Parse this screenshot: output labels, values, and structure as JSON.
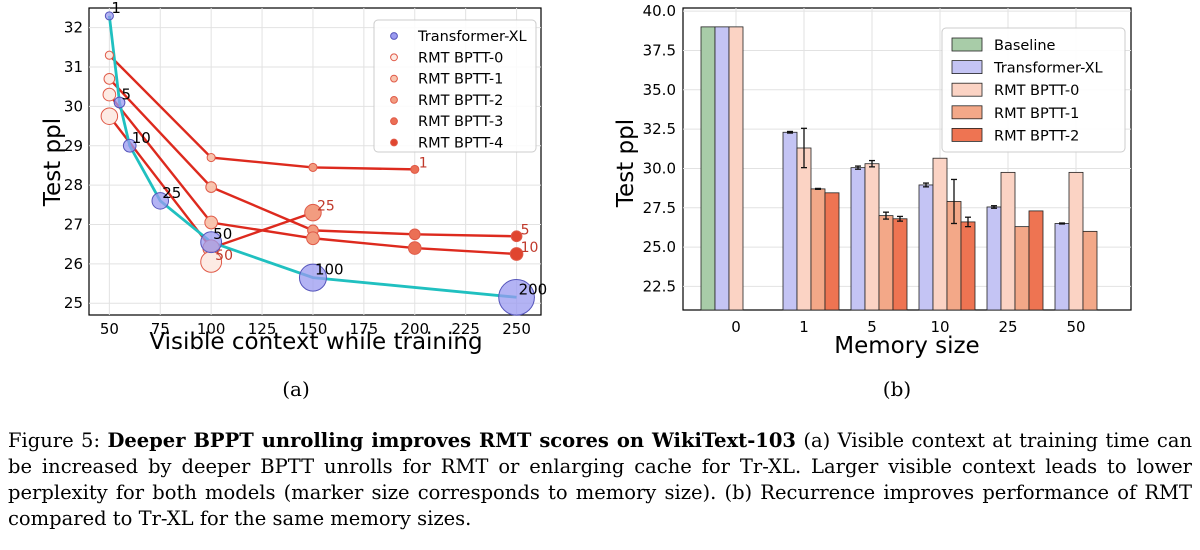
{
  "figure": {
    "label": "Figure 5:",
    "title": "Deeper BPPT unrolling improves RMT scores on WikiText-103",
    "body": "(a) Visible context at training time can be increased by deeper BPTT unrolls for RMT or enlarging cache for Tr-XL. Larger visible context leads to lower perplexity for both models (marker size corresponds to memory size). (b) Recurrence improves performance of RMT compared to Tr-XL for the same memory sizes."
  },
  "chart_data": [
    {
      "type": "line",
      "panel_label": "(a)",
      "xlabel": "Visible context while training",
      "ylabel": "Test ppl",
      "xlim": [
        40,
        262
      ],
      "ylim": [
        24.7,
        32.5
      ],
      "xticks": [
        50,
        75,
        100,
        125,
        150,
        175,
        200,
        225,
        250
      ],
      "yticks": [
        25,
        26,
        27,
        28,
        29,
        30,
        31,
        32
      ],
      "grid": true,
      "legend_position": "top-right",
      "series": [
        {
          "name": "Transformer-XL",
          "color": "#20c0c0",
          "marker_color": "#9a9af0",
          "points": [
            {
              "x": 50,
              "y": 32.3,
              "mem": 1,
              "label": "1"
            },
            {
              "x": 55,
              "y": 30.1,
              "mem": 5,
              "label": "5"
            },
            {
              "x": 60,
              "y": 29.0,
              "mem": 10,
              "label": "10"
            },
            {
              "x": 75,
              "y": 27.6,
              "mem": 25,
              "label": "25"
            },
            {
              "x": 100,
              "y": 26.55,
              "mem": 50,
              "label": "50"
            },
            {
              "x": 150,
              "y": 25.65,
              "mem": 100,
              "label": "100"
            },
            {
              "x": 250,
              "y": 25.15,
              "mem": 200,
              "label": "200"
            }
          ]
        },
        {
          "name": "RMT BPTT-0",
          "line": false,
          "points": []
        },
        {
          "name": "RMT BPTT-1",
          "line": false,
          "points": []
        },
        {
          "name": "RMT BPTT-2",
          "line": false,
          "points": []
        },
        {
          "name": "RMT BPTT-3",
          "line": false,
          "points": []
        },
        {
          "name": "RMT BPTT-4",
          "line": false,
          "points": []
        }
      ],
      "rmt_lines": [
        {
          "label": "1",
          "points": [
            {
              "x": 50,
              "y": 31.3,
              "mem": 1,
              "bptt": 0
            },
            {
              "x": 100,
              "y": 28.7,
              "mem": 1,
              "bptt": 1
            },
            {
              "x": 150,
              "y": 28.45,
              "mem": 1,
              "bptt": 2
            },
            {
              "x": 200,
              "y": 28.4,
              "mem": 1,
              "bptt": 3
            }
          ]
        },
        {
          "label": "5",
          "points": [
            {
              "x": 50,
              "y": 30.7,
              "mem": 5,
              "bptt": 0
            },
            {
              "x": 100,
              "y": 27.95,
              "mem": 5,
              "bptt": 1
            },
            {
              "x": 150,
              "y": 26.85,
              "mem": 5,
              "bptt": 2
            },
            {
              "x": 200,
              "y": 26.75,
              "mem": 5,
              "bptt": 3
            },
            {
              "x": 250,
              "y": 26.7,
              "mem": 5,
              "bptt": 4
            }
          ]
        },
        {
          "label": "10",
          "points": [
            {
              "x": 50,
              "y": 30.3,
              "mem": 10,
              "bptt": 0
            },
            {
              "x": 100,
              "y": 27.05,
              "mem": 10,
              "bptt": 1
            },
            {
              "x": 150,
              "y": 26.65,
              "mem": 10,
              "bptt": 2
            },
            {
              "x": 200,
              "y": 26.4,
              "mem": 10,
              "bptt": 3
            },
            {
              "x": 250,
              "y": 26.25,
              "mem": 10,
              "bptt": 4
            }
          ]
        },
        {
          "label": "25",
          "points": [
            {
              "x": 50,
              "y": 29.75,
              "mem": 25,
              "bptt": 0
            },
            {
              "x": 100,
              "y": 26.4,
              "mem": 25,
              "bptt": 1
            },
            {
              "x": 150,
              "y": 27.3,
              "mem": 25,
              "bptt": 2
            }
          ]
        },
        {
          "label": "50",
          "points": [
            {
              "x": 100,
              "y": 26.05,
              "mem": 50,
              "bptt": 0
            }
          ]
        }
      ],
      "legend": [
        "Transformer-XL",
        "RMT BPTT-0",
        "RMT BPTT-1",
        "RMT BPTT-2",
        "RMT BPTT-3",
        "RMT BPTT-4"
      ]
    },
    {
      "type": "bar",
      "panel_label": "(b)",
      "xlabel": "Memory size",
      "ylabel": "Test ppl",
      "ylim": [
        21,
        40.2
      ],
      "yticks": [
        22.5,
        25.0,
        27.5,
        30.0,
        32.5,
        35.0,
        37.5,
        40.0
      ],
      "categories": [
        "0",
        "1",
        "5",
        "10",
        "25",
        "50"
      ],
      "grid": true,
      "legend_position": "top-right",
      "series": [
        {
          "name": "Baseline",
          "color": "#a8cca8",
          "values": [
            39.0,
            null,
            null,
            null,
            null,
            null
          ],
          "err": [
            0,
            0,
            0,
            0,
            0,
            0
          ]
        },
        {
          "name": "Transformer-XL",
          "color": "#c4c4f4",
          "values": [
            39.0,
            32.3,
            30.05,
            28.95,
            27.55,
            26.5
          ],
          "err": [
            0,
            0.05,
            0.1,
            0.12,
            0.08,
            0.03
          ]
        },
        {
          "name": "RMT BPTT-0",
          "color": "#fbd3c4",
          "values": [
            39.0,
            31.3,
            30.3,
            30.65,
            29.75,
            29.75
          ],
          "err": [
            0,
            1.25,
            0.2,
            0,
            0,
            0
          ]
        },
        {
          "name": "RMT BPTT-1",
          "color": "#f3a888",
          "values": [
            null,
            28.7,
            27.0,
            27.9,
            26.3,
            26.0
          ],
          "err": [
            0,
            0.03,
            0.22,
            1.4,
            0,
            0
          ]
        },
        {
          "name": "RMT BPTT-2",
          "color": "#ee7452",
          "values": [
            null,
            28.45,
            26.8,
            26.6,
            27.3,
            null
          ],
          "err": [
            0,
            0,
            0.15,
            0.3,
            0,
            0
          ]
        }
      ]
    }
  ]
}
